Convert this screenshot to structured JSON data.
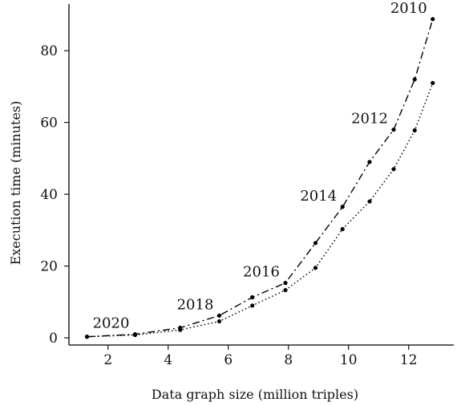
{
  "chart_data": {
    "type": "line",
    "xlabel": "Data graph size (million triples)",
    "ylabel": "Execution time (minutes)",
    "xlim": [
      0.7,
      13.5
    ],
    "ylim": [
      -2,
      93
    ],
    "xticks": [
      2,
      4,
      6,
      8,
      10,
      12
    ],
    "yticks": [
      0,
      20,
      40,
      60,
      80
    ],
    "grid": false,
    "series": [
      {
        "style": "dashdot",
        "x": [
          1.3,
          2.9,
          4.4,
          5.7,
          6.8,
          7.9,
          8.9,
          9.8,
          10.7,
          11.5,
          12.2,
          12.8
        ],
        "y": [
          0.3,
          1.0,
          2.8,
          6.2,
          11.3,
          15.3,
          26.4,
          36.5,
          49.0,
          58.0,
          72.0,
          88.8
        ]
      },
      {
        "style": "dotted",
        "x": [
          1.3,
          2.9,
          4.4,
          5.7,
          6.8,
          7.9,
          8.9,
          9.8,
          10.7,
          11.5,
          12.2,
          12.8
        ],
        "y": [
          0.3,
          0.8,
          2.2,
          4.6,
          9.0,
          13.3,
          19.5,
          30.3,
          38.0,
          47.0,
          57.8,
          71.0
        ]
      }
    ],
    "annotations": [
      {
        "text": "2010",
        "x": 12.8,
        "y": 88.8
      },
      {
        "text": "2012",
        "x": 11.5,
        "y": 58.0
      },
      {
        "text": "2014",
        "x": 9.8,
        "y": 36.5
      },
      {
        "text": "2016",
        "x": 7.9,
        "y": 15.3
      },
      {
        "text": "2018",
        "x": 5.7,
        "y": 6.2
      },
      {
        "text": "2020",
        "x": 2.9,
        "y": 1.0
      }
    ]
  }
}
